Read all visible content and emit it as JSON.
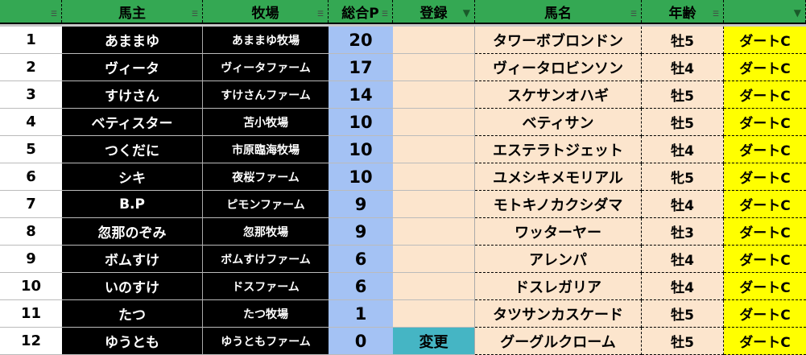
{
  "headers": [
    "",
    "馬主",
    "牧場",
    "総合P",
    "登録",
    "馬名",
    "年齢",
    ""
  ],
  "header_filters": [
    "filter",
    "filter",
    "filter",
    "filter",
    "filter-active",
    "filter",
    "filter",
    "filter-active"
  ],
  "colors": {
    "header": "#34a853",
    "points": "#a4c2f4",
    "registration": "#fce5cd",
    "change": "#45b5c4",
    "course": "#ffff00"
  },
  "rows": [
    {
      "no": "1",
      "owner": "あままゆ",
      "farm": "あままゆ牧場",
      "points": "20",
      "reg": "",
      "horse": "タワーボブロンドン",
      "age": "牡5",
      "course": "ダートC"
    },
    {
      "no": "2",
      "owner": "ヴィータ",
      "farm": "ヴィータファーム",
      "points": "17",
      "reg": "",
      "horse": "ヴィータロビンソン",
      "age": "牡4",
      "course": "ダートC"
    },
    {
      "no": "3",
      "owner": "すけさん",
      "farm": "すけさんファーム",
      "points": "14",
      "reg": "",
      "horse": "スケサンオハギ",
      "age": "牡5",
      "course": "ダートC"
    },
    {
      "no": "4",
      "owner": "ベティスター",
      "farm": "苫小牧場",
      "points": "10",
      "reg": "",
      "horse": "ベティサン",
      "age": "牡5",
      "course": "ダートC"
    },
    {
      "no": "5",
      "owner": "つくだに",
      "farm": "市原臨海牧場",
      "points": "10",
      "reg": "",
      "horse": "エステラトジェット",
      "age": "牡4",
      "course": "ダートC"
    },
    {
      "no": "6",
      "owner": "シキ",
      "farm": "夜桜ファーム",
      "points": "10",
      "reg": "",
      "horse": "ユメシキメモリアル",
      "age": "牝5",
      "course": "ダートC"
    },
    {
      "no": "7",
      "owner": "B.P",
      "farm": "ピモンファーム",
      "points": "9",
      "reg": "",
      "horse": "モトキノカクシダマ",
      "age": "牡4",
      "course": "ダートC"
    },
    {
      "no": "8",
      "owner": "忽那のぞみ",
      "farm": "忽那牧場",
      "points": "9",
      "reg": "",
      "horse": "ワッターヤー",
      "age": "牡3",
      "course": "ダートC"
    },
    {
      "no": "9",
      "owner": "ボムすけ",
      "farm": "ボムすけファーム",
      "points": "6",
      "reg": "",
      "horse": "アレンパ",
      "age": "牡4",
      "course": "ダートC"
    },
    {
      "no": "10",
      "owner": "いのすけ",
      "farm": "ドスファーム",
      "points": "6",
      "reg": "",
      "horse": "ドスレガリア",
      "age": "牡4",
      "course": "ダートC"
    },
    {
      "no": "11",
      "owner": "たつ",
      "farm": "たつ牧場",
      "points": "1",
      "reg": "",
      "horse": "タツサンカスケード",
      "age": "牡5",
      "course": "ダートC"
    },
    {
      "no": "12",
      "owner": "ゆうとも",
      "farm": "ゆうともファーム",
      "points": "0",
      "reg": "変更",
      "horse": "グーグルクローム",
      "age": "牡5",
      "course": "ダートC"
    }
  ]
}
